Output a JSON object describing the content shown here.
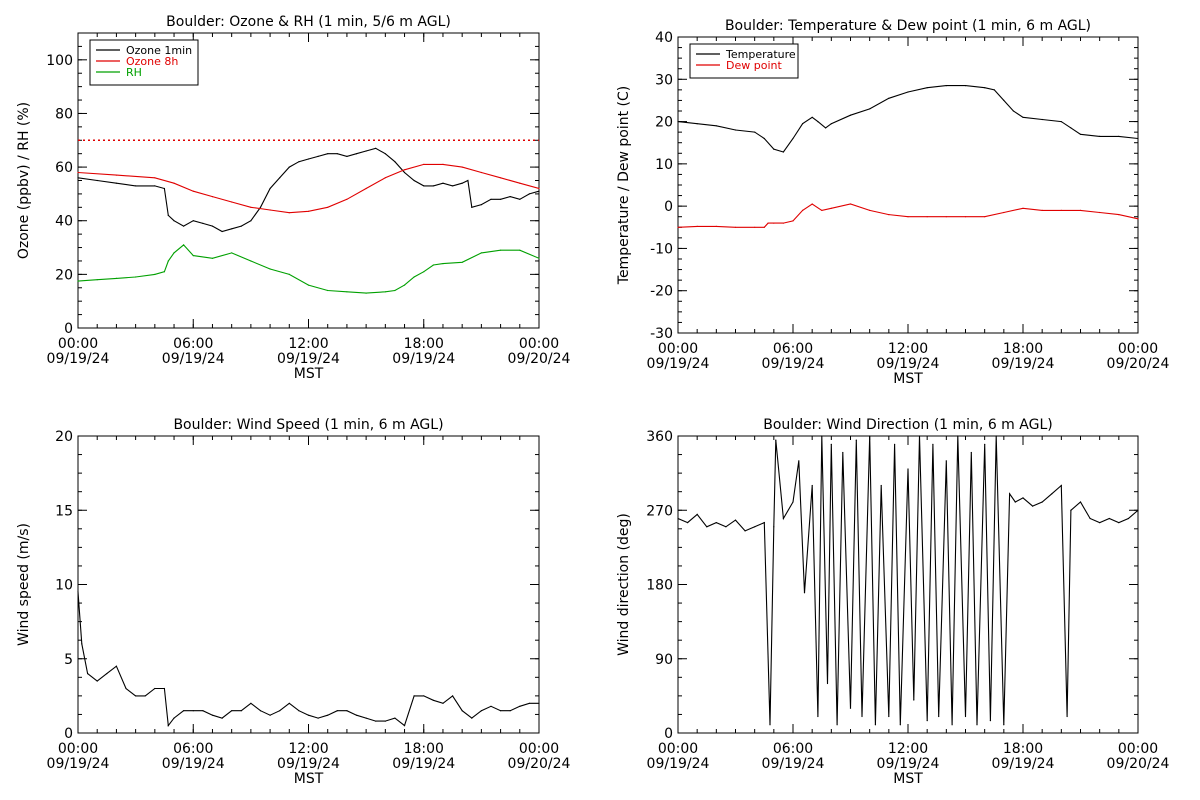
{
  "colors": {
    "background": "#ffffff",
    "axis": "#000000",
    "ozone_1min": "#000000",
    "ozone_8h": "#e00000",
    "rh": "#00a000",
    "temperature": "#000000",
    "dew_point": "#e00000",
    "wind": "#000000",
    "reference_line": "#e00000"
  },
  "chart_data": [
    {
      "type": "line",
      "title": "Boulder: Ozone & RH (1 min, 5/6 m AGL)",
      "xlabel": "MST",
      "ylabel": "Ozone (ppbv) / RH (%)",
      "xlim": [
        0,
        24
      ],
      "ylim": [
        0,
        110
      ],
      "yticks": [
        0,
        20,
        40,
        60,
        80,
        100
      ],
      "xticks": [
        0,
        6,
        12,
        18,
        24
      ],
      "xtick_labels": [
        [
          "00:00",
          "09/19/24"
        ],
        [
          "06:00",
          "09/19/24"
        ],
        [
          "12:00",
          "09/19/24"
        ],
        [
          "18:00",
          "09/19/24"
        ],
        [
          "00:00",
          "09/20/24"
        ]
      ],
      "legend_position": "top-left",
      "legend": [
        "Ozone 1min",
        "Ozone 8h",
        "RH"
      ],
      "reference_line": {
        "y": 70,
        "style": "dotted",
        "color": "#e00000"
      },
      "series": [
        {
          "name": "Ozone 1min",
          "color": "#000000",
          "x": [
            0,
            1,
            2,
            3,
            4,
            4.5,
            4.7,
            5,
            5.5,
            6,
            6.5,
            7,
            7.5,
            8,
            8.5,
            9,
            9.5,
            10,
            10.5,
            11,
            11.5,
            12,
            12.5,
            13,
            13.5,
            14,
            14.5,
            15,
            15.5,
            16,
            16.5,
            17,
            17.5,
            18,
            18.5,
            19,
            19.5,
            20,
            20.3,
            20.5,
            21,
            21.5,
            22,
            22.5,
            23,
            23.5,
            24
          ],
          "y": [
            56,
            55,
            54,
            53,
            53,
            52,
            42,
            40,
            38,
            40,
            39,
            38,
            36,
            37,
            38,
            40,
            45,
            52,
            56,
            60,
            62,
            63,
            64,
            65,
            65,
            64,
            65,
            66,
            67,
            65,
            62,
            58,
            55,
            53,
            53,
            54,
            53,
            54,
            55,
            45,
            46,
            48,
            48,
            49,
            48,
            50,
            51
          ]
        },
        {
          "name": "Ozone 8h",
          "color": "#e00000",
          "x": [
            0,
            2,
            4,
            5,
            6,
            7,
            8,
            9,
            10,
            11,
            12,
            13,
            14,
            15,
            16,
            17,
            18,
            19,
            20,
            21,
            22,
            23,
            24
          ],
          "y": [
            58,
            57,
            56,
            54,
            51,
            49,
            47,
            45,
            44,
            43,
            43.5,
            45,
            48,
            52,
            56,
            59,
            61,
            61,
            60,
            58,
            56,
            54,
            52
          ]
        },
        {
          "name": "RH",
          "color": "#00a000",
          "x": [
            0,
            1,
            2,
            3,
            4,
            4.5,
            4.7,
            5,
            5.5,
            6,
            7,
            8,
            9,
            10,
            11,
            12,
            13,
            14,
            15,
            16,
            16.5,
            17,
            17.5,
            18,
            18.5,
            19,
            20,
            21,
            22,
            23,
            24
          ],
          "y": [
            17.5,
            18,
            18.5,
            19,
            20,
            21,
            25,
            28,
            31,
            27,
            26,
            28,
            25,
            22,
            20,
            16,
            14,
            13.5,
            13,
            13.5,
            14,
            16,
            19,
            21,
            23.5,
            24,
            24.5,
            28,
            29,
            29,
            26
          ]
        }
      ]
    },
    {
      "type": "line",
      "title": "Boulder: Temperature & Dew point (1 min, 6 m AGL)",
      "xlabel": "MST",
      "ylabel": "Temperature / Dew point (C)",
      "xlim": [
        0,
        24
      ],
      "ylim": [
        -30,
        40
      ],
      "yticks": [
        -30,
        -20,
        -10,
        0,
        10,
        20,
        30,
        40
      ],
      "xticks": [
        0,
        6,
        12,
        18,
        24
      ],
      "xtick_labels": [
        [
          "00:00",
          "09/19/24"
        ],
        [
          "06:00",
          "09/19/24"
        ],
        [
          "12:00",
          "09/19/24"
        ],
        [
          "18:00",
          "09/19/24"
        ],
        [
          "00:00",
          "09/20/24"
        ]
      ],
      "legend_position": "top-left",
      "legend": [
        "Temperature",
        "Dew point"
      ],
      "series": [
        {
          "name": "Temperature",
          "color": "#000000",
          "x": [
            0,
            1,
            2,
            3,
            4,
            4.5,
            5,
            5.5,
            6,
            6.5,
            7,
            7.3,
            7.7,
            8,
            9,
            10,
            11,
            12,
            13,
            14,
            15,
            16,
            16.5,
            17,
            17.5,
            18,
            19,
            20,
            20.5,
            21,
            22,
            23,
            24
          ],
          "y": [
            20,
            19.5,
            19,
            18,
            17.5,
            16,
            13.5,
            12.8,
            16,
            19.5,
            21,
            20,
            18.5,
            19.5,
            21.5,
            23,
            25.5,
            27,
            28,
            28.5,
            28.5,
            28,
            27.5,
            25,
            22.5,
            21,
            20.5,
            20,
            18.5,
            17,
            16.5,
            16.5,
            16
          ]
        },
        {
          "name": "Dew point",
          "color": "#e00000",
          "x": [
            0,
            1,
            2,
            3,
            4,
            4.5,
            4.7,
            5,
            5.5,
            6,
            6.5,
            7,
            7.5,
            8,
            9,
            10,
            11,
            12,
            13,
            14,
            15,
            16,
            17,
            18,
            19,
            20,
            21,
            22,
            23,
            24
          ],
          "y": [
            -5,
            -4.8,
            -4.8,
            -5,
            -5,
            -5,
            -4,
            -4,
            -4,
            -3.5,
            -1,
            0.5,
            -1,
            -0.5,
            0.5,
            -1,
            -2,
            -2.5,
            -2.5,
            -2.5,
            -2.5,
            -2.5,
            -1.5,
            -0.5,
            -1,
            -1,
            -1,
            -1.5,
            -2,
            -3
          ]
        }
      ]
    },
    {
      "type": "line",
      "title": "Boulder: Wind Speed (1 min, 6 m AGL)",
      "xlabel": "MST",
      "ylabel": "Wind speed (m/s)",
      "xlim": [
        0,
        24
      ],
      "ylim": [
        0,
        20
      ],
      "yticks": [
        0,
        5,
        10,
        15,
        20
      ],
      "xticks": [
        0,
        6,
        12,
        18,
        24
      ],
      "xtick_labels": [
        [
          "00:00",
          "09/19/24"
        ],
        [
          "06:00",
          "09/19/24"
        ],
        [
          "12:00",
          "09/19/24"
        ],
        [
          "18:00",
          "09/19/24"
        ],
        [
          "00:00",
          "09/20/24"
        ]
      ],
      "series": [
        {
          "name": "",
          "color": "#000000",
          "x": [
            0,
            0.2,
            0.5,
            1,
            1.5,
            2,
            2.5,
            3,
            3.5,
            4,
            4.5,
            4.7,
            5,
            5.5,
            6,
            6.5,
            7,
            7.5,
            8,
            8.5,
            9,
            9.5,
            10,
            10.5,
            11,
            11.5,
            12,
            12.5,
            13,
            13.5,
            14,
            14.5,
            15,
            15.5,
            16,
            16.5,
            17,
            17.5,
            18,
            18.5,
            19,
            19.5,
            20,
            20.5,
            21,
            21.5,
            22,
            22.5,
            23,
            23.5,
            24
          ],
          "y": [
            9.5,
            6,
            4,
            3.5,
            4,
            4.5,
            3,
            2.5,
            2.5,
            3,
            3,
            0.5,
            1,
            1.5,
            1.5,
            1.5,
            1.2,
            1,
            1.5,
            1.5,
            2,
            1.5,
            1.2,
            1.5,
            2,
            1.5,
            1.2,
            1,
            1.2,
            1.5,
            1.5,
            1.2,
            1,
            0.8,
            0.8,
            1,
            0.5,
            2.5,
            2.5,
            2.2,
            2,
            2.5,
            1.5,
            1,
            1.5,
            1.8,
            1.5,
            1.5,
            1.8,
            2,
            2
          ]
        }
      ]
    },
    {
      "type": "line",
      "title": "Boulder: Wind Direction (1 min, 6 m AGL)",
      "xlabel": "MST",
      "ylabel": "Wind direction (deg)",
      "xlim": [
        0,
        24
      ],
      "ylim": [
        0,
        360
      ],
      "yticks": [
        0,
        90,
        180,
        270,
        360
      ],
      "xticks": [
        0,
        6,
        12,
        18,
        24
      ],
      "xtick_labels": [
        [
          "00:00",
          "09/19/24"
        ],
        [
          "06:00",
          "09/19/24"
        ],
        [
          "12:00",
          "09/19/24"
        ],
        [
          "18:00",
          "09/19/24"
        ],
        [
          "00:00",
          "09/20/24"
        ]
      ],
      "series": [
        {
          "name": "",
          "color": "#000000",
          "x": [
            0,
            0.5,
            1,
            1.5,
            2,
            2.5,
            3,
            3.5,
            4,
            4.5,
            4.8,
            5,
            5.1,
            5.5,
            6,
            6.3,
            6.6,
            7,
            7.3,
            7.5,
            7.8,
            8,
            8.3,
            8.6,
            9,
            9.3,
            9.6,
            10,
            10.3,
            10.6,
            11,
            11.3,
            11.6,
            12,
            12.3,
            12.6,
            13,
            13.3,
            13.6,
            14,
            14.3,
            14.6,
            15,
            15.3,
            15.6,
            16,
            16.3,
            16.6,
            17,
            17.3,
            17.6,
            18,
            18.5,
            19,
            19.5,
            20,
            20.3,
            20.5,
            21,
            21.5,
            22,
            22.5,
            23,
            23.5,
            24
          ],
          "y": [
            260,
            255,
            265,
            250,
            255,
            250,
            258,
            245,
            250,
            255,
            10,
            250,
            355,
            260,
            280,
            330,
            170,
            300,
            20,
            360,
            60,
            350,
            10,
            340,
            30,
            355,
            20,
            360,
            10,
            300,
            20,
            350,
            10,
            320,
            40,
            360,
            15,
            350,
            20,
            330,
            10,
            360,
            20,
            340,
            10,
            350,
            15,
            360,
            10,
            290,
            280,
            285,
            275,
            280,
            290,
            300,
            20,
            270,
            280,
            260,
            255,
            260,
            255,
            260,
            270
          ]
        }
      ]
    }
  ]
}
